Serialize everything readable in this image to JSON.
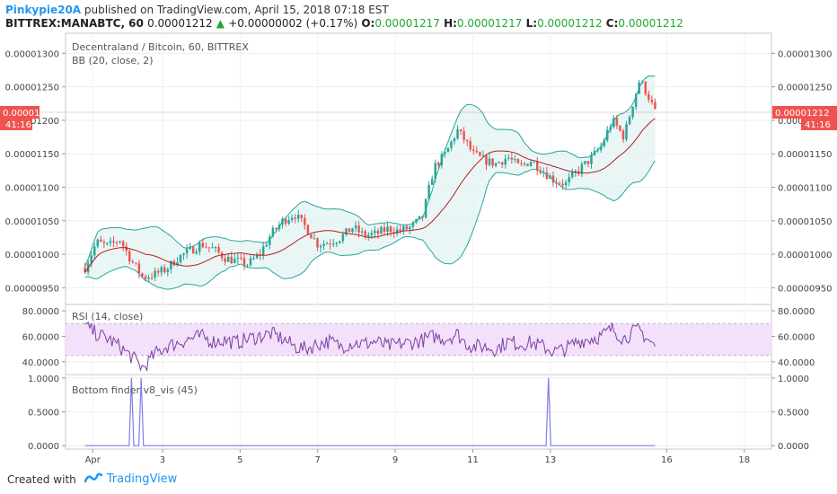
{
  "header": {
    "author": "Pinkypie20A",
    "published_text": "published on TradingView.com, April 15, 2018 07:18 EST",
    "symbol": "BITTREX:MANABTC, 60",
    "price": "0.00001212",
    "change_arrow": "▲",
    "change": "+0.00000002 (+0.17%)",
    "o_label": "O:",
    "o_value": "0.00001217",
    "h_label": "H:",
    "h_value": "0.00001217",
    "l_label": "L:",
    "l_value": "0.00001212",
    "c_label": "C:",
    "c_value": "0.00001212"
  },
  "footer": {
    "created_with": "Created with",
    "brand": "TradingView"
  },
  "colors": {
    "up": "#26a69a",
    "down": "#ef5350",
    "bb_band": "#26a69a",
    "bb_basis": "#b71c1c",
    "bb_fill": "#e0f2f1",
    "rsi_line": "#7b3fa1",
    "rsi_band": "#f3e0fa",
    "bottom_line": "#7e7ee8",
    "price_tag": "#ef5350",
    "brand": "#2196f3"
  },
  "chart_data": [
    {
      "type": "candlestick",
      "title": "Decentraland / Bitcoin, 60, BITTREX",
      "indicator_label": "BB (20, close, 2)",
      "yticks": [
        "0.00001300",
        "0.00001250",
        "0.00001200",
        "0.00001150",
        "0.00001100",
        "0.00001050",
        "0.00001000",
        "0.00000950"
      ],
      "ytick_values": [
        1300,
        1250,
        1200,
        1150,
        1100,
        1050,
        1000,
        950
      ],
      "ylim": [
        925,
        1330
      ],
      "y_unit_note": "values in units of 1e-8 BTC",
      "x_day_range": [
        0.5,
        18.7
      ],
      "last_price": 1212,
      "last_price_label": "0.00001212",
      "countdown_label": "41:16",
      "anchors": [
        [
          1.0,
          980
        ],
        [
          1.3,
          1018
        ],
        [
          1.6,
          1012
        ],
        [
          1.9,
          1022
        ],
        [
          2.2,
          990
        ],
        [
          2.5,
          965
        ],
        [
          2.8,
          970
        ],
        [
          3.1,
          978
        ],
        [
          3.4,
          995
        ],
        [
          3.7,
          1005
        ],
        [
          4.0,
          1015
        ],
        [
          4.3,
          1008
        ],
        [
          4.6,
          995
        ],
        [
          4.9,
          990
        ],
        [
          5.2,
          985
        ],
        [
          5.5,
          1000
        ],
        [
          5.8,
          1030
        ],
        [
          6.1,
          1050
        ],
        [
          6.4,
          1060
        ],
        [
          6.7,
          1040
        ],
        [
          7.0,
          1015
        ],
        [
          7.3,
          1018
        ],
        [
          7.6,
          1025
        ],
        [
          7.9,
          1040
        ],
        [
          8.2,
          1028
        ],
        [
          8.5,
          1030
        ],
        [
          8.8,
          1038
        ],
        [
          9.1,
          1035
        ],
        [
          9.4,
          1040
        ],
        [
          9.7,
          1055
        ],
        [
          10.0,
          1130
        ],
        [
          10.3,
          1150
        ],
        [
          10.6,
          1185
        ],
        [
          10.8,
          1170
        ],
        [
          11.0,
          1150
        ],
        [
          11.3,
          1140
        ],
        [
          11.6,
          1135
        ],
        [
          11.9,
          1145
        ],
        [
          12.2,
          1130
        ],
        [
          12.5,
          1140
        ],
        [
          12.8,
          1125
        ],
        [
          13.1,
          1110
        ],
        [
          13.4,
          1105
        ],
        [
          13.7,
          1125
        ],
        [
          14.0,
          1140
        ],
        [
          14.3,
          1160
        ],
        [
          14.6,
          1200
        ],
        [
          14.9,
          1175
        ],
        [
          15.1,
          1220
        ],
        [
          15.3,
          1260
        ],
        [
          15.5,
          1240
        ],
        [
          15.7,
          1212
        ]
      ],
      "volatility": 10
    },
    {
      "type": "line",
      "title": "RSI (14, close)",
      "yticks": [
        "80.0000",
        "60.0000",
        "40.0000"
      ],
      "ytick_values": [
        80,
        60,
        40
      ],
      "ylim": [
        30,
        85
      ],
      "band": [
        45,
        70
      ],
      "anchors": [
        [
          1.0,
          68
        ],
        [
          1.3,
          62
        ],
        [
          1.6,
          58
        ],
        [
          1.9,
          52
        ],
        [
          2.2,
          44
        ],
        [
          2.5,
          35
        ],
        [
          2.8,
          46
        ],
        [
          3.1,
          52
        ],
        [
          3.4,
          55
        ],
        [
          3.7,
          58
        ],
        [
          4.0,
          60
        ],
        [
          4.3,
          56
        ],
        [
          4.6,
          57
        ],
        [
          4.9,
          55
        ],
        [
          5.2,
          58
        ],
        [
          5.5,
          60
        ],
        [
          5.8,
          62
        ],
        [
          6.1,
          58
        ],
        [
          6.4,
          52
        ],
        [
          6.7,
          50
        ],
        [
          7.0,
          54
        ],
        [
          7.3,
          56
        ],
        [
          7.6,
          52
        ],
        [
          7.9,
          55
        ],
        [
          8.2,
          54
        ],
        [
          8.5,
          56
        ],
        [
          8.8,
          52
        ],
        [
          9.1,
          54
        ],
        [
          9.4,
          55
        ],
        [
          9.7,
          57
        ],
        [
          10.0,
          60
        ],
        [
          10.3,
          58
        ],
        [
          10.6,
          62
        ],
        [
          10.8,
          55
        ],
        [
          11.0,
          52
        ],
        [
          11.3,
          52
        ],
        [
          11.6,
          50
        ],
        [
          11.9,
          56
        ],
        [
          12.2,
          54
        ],
        [
          12.5,
          55
        ],
        [
          12.8,
          52
        ],
        [
          13.1,
          48
        ],
        [
          13.4,
          50
        ],
        [
          13.7,
          56
        ],
        [
          14.0,
          58
        ],
        [
          14.3,
          60
        ],
        [
          14.6,
          66
        ],
        [
          14.9,
          58
        ],
        [
          15.1,
          63
        ],
        [
          15.3,
          65
        ],
        [
          15.5,
          58
        ],
        [
          15.7,
          52
        ]
      ],
      "volatility": 6
    },
    {
      "type": "line",
      "title": "Bottom finder v8_vis (45)",
      "yticks": [
        "1.0000",
        "0.5000",
        "0.0000"
      ],
      "ytick_values": [
        1,
        0.5,
        0
      ],
      "ylim": [
        -0.05,
        1.05
      ],
      "spikes": [
        2.2,
        2.45,
        12.95
      ]
    }
  ],
  "x_axis": {
    "labels": [
      {
        "day": 1.2,
        "text": "Apr"
      },
      {
        "day": 3,
        "text": "3"
      },
      {
        "day": 5,
        "text": "5"
      },
      {
        "day": 7,
        "text": "7"
      },
      {
        "day": 9,
        "text": "9"
      },
      {
        "day": 11,
        "text": "11"
      },
      {
        "day": 13,
        "text": "13"
      },
      {
        "day": 16,
        "text": "16"
      },
      {
        "day": 18,
        "text": "18"
      }
    ]
  }
}
